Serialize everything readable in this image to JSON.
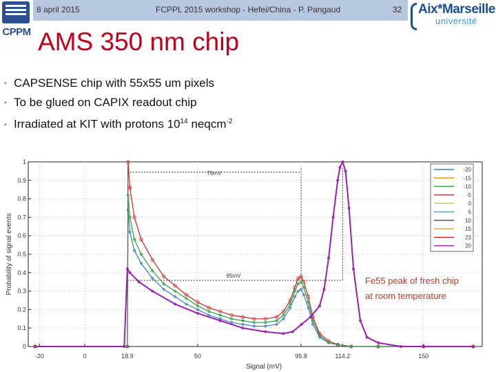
{
  "header": {
    "date": "8 april 2015",
    "event": "FCPPL 2015 workshop - Hefei/China - P. Pangaud",
    "page": "32"
  },
  "logos": {
    "left": "CPPM",
    "right_name": "Aix*Marseille",
    "right_sub": "université"
  },
  "title": "AMS 350 nm chip",
  "bullets": [
    {
      "text": "CAPSENSE chip with 55x55 um pixels"
    },
    {
      "text": "To be glued on CAPIX readout chip"
    },
    {
      "text": "Irradiated at KIT with protons 10",
      "sup1": "14",
      "mid": " neqcm",
      "sup2": "-2"
    }
  ],
  "chart_data": {
    "type": "line",
    "xlabel": "Signal (mV)",
    "ylabel": "Probability of signal events",
    "xlim": [
      -25,
      176
    ],
    "ylim": [
      0,
      1
    ],
    "xticks": [
      "-20",
      "0",
      "18.9",
      "50",
      "95.8",
      "114.2",
      "150"
    ],
    "xtick_values": [
      -20,
      0,
      18.9,
      50,
      95.8,
      114.2,
      150
    ],
    "yticks": [
      "0",
      "0.1",
      "0.2",
      "0.3",
      "0.4",
      "0.5",
      "0.6",
      "0.7",
      "0.8",
      "0.9",
      "1"
    ],
    "legend": [
      "-20",
      "-15",
      "-10",
      "-5",
      "0",
      "5",
      "10",
      "15",
      "23",
      "20"
    ],
    "legend_colors": [
      "#3a7fc1",
      "#e08a1e",
      "#2c9c3a",
      "#c6262e",
      "#d8c21a",
      "#2fb5c9",
      "#444444",
      "#f0a020",
      "#cc2222",
      "#9a1fb0"
    ],
    "annotations": {
      "span1": "76mV",
      "span2": "95mV",
      "callout": "Fe55 peak of fresh chip at room temperature"
    },
    "series": [
      {
        "name": "23",
        "x": [
          -22,
          18.9,
          19.2,
          20,
          22,
          25,
          30,
          35,
          40,
          45,
          50,
          55,
          60,
          65,
          70,
          75,
          80,
          85,
          88,
          91,
          93,
          94.5,
          95.8,
          97,
          99,
          101,
          104,
          108,
          112,
          118,
          130,
          150,
          172
        ],
        "y": [
          0.0,
          0.0,
          1.0,
          0.86,
          0.7,
          0.58,
          0.47,
          0.38,
          0.33,
          0.28,
          0.24,
          0.21,
          0.19,
          0.17,
          0.16,
          0.15,
          0.15,
          0.16,
          0.19,
          0.25,
          0.32,
          0.37,
          0.38,
          0.35,
          0.27,
          0.16,
          0.07,
          0.03,
          0.01,
          0.0,
          0.0,
          0.0,
          0.0
        ]
      },
      {
        "name": "-20",
        "x": [
          -22,
          18.9,
          19.2,
          20,
          22,
          25,
          30,
          35,
          40,
          45,
          50,
          55,
          60,
          65,
          70,
          75,
          80,
          85,
          88,
          91,
          93,
          94.5,
          95.8,
          97,
          99,
          101,
          104,
          108,
          112,
          118,
          130,
          150,
          172
        ],
        "y": [
          0.0,
          0.0,
          0.74,
          0.62,
          0.52,
          0.45,
          0.37,
          0.31,
          0.27,
          0.23,
          0.2,
          0.17,
          0.15,
          0.13,
          0.12,
          0.11,
          0.11,
          0.12,
          0.15,
          0.21,
          0.27,
          0.3,
          0.31,
          0.28,
          0.21,
          0.12,
          0.05,
          0.02,
          0.01,
          0.0,
          0.0,
          0.0,
          0.0
        ]
      },
      {
        "name": "-10",
        "x": [
          -22,
          18.9,
          19.2,
          20,
          22,
          25,
          30,
          35,
          40,
          45,
          50,
          55,
          60,
          65,
          70,
          75,
          80,
          85,
          88,
          91,
          93,
          94.5,
          95.8,
          97,
          99,
          101,
          104,
          108,
          112,
          118,
          130,
          150,
          172
        ],
        "y": [
          0.0,
          0.0,
          0.82,
          0.7,
          0.58,
          0.5,
          0.41,
          0.34,
          0.3,
          0.26,
          0.22,
          0.19,
          0.17,
          0.15,
          0.14,
          0.13,
          0.13,
          0.14,
          0.17,
          0.23,
          0.3,
          0.34,
          0.35,
          0.32,
          0.24,
          0.14,
          0.06,
          0.02,
          0.01,
          0.0,
          0.0,
          0.0,
          0.0
        ]
      },
      {
        "name": "20",
        "x": [
          -22,
          17.5,
          18.9,
          20,
          24,
          30,
          40,
          50,
          60,
          70,
          80,
          88,
          92,
          96,
          100,
          104,
          106,
          108,
          110,
          112,
          113,
          114.2,
          115.5,
          117,
          119,
          122,
          125,
          130,
          140,
          150,
          172
        ],
        "y": [
          0.0,
          0.0,
          0.42,
          0.4,
          0.35,
          0.3,
          0.23,
          0.18,
          0.14,
          0.1,
          0.08,
          0.07,
          0.08,
          0.12,
          0.16,
          0.22,
          0.31,
          0.48,
          0.7,
          0.9,
          0.97,
          1.0,
          0.95,
          0.75,
          0.42,
          0.14,
          0.05,
          0.02,
          0.0,
          0.0,
          0.0
        ]
      }
    ]
  }
}
